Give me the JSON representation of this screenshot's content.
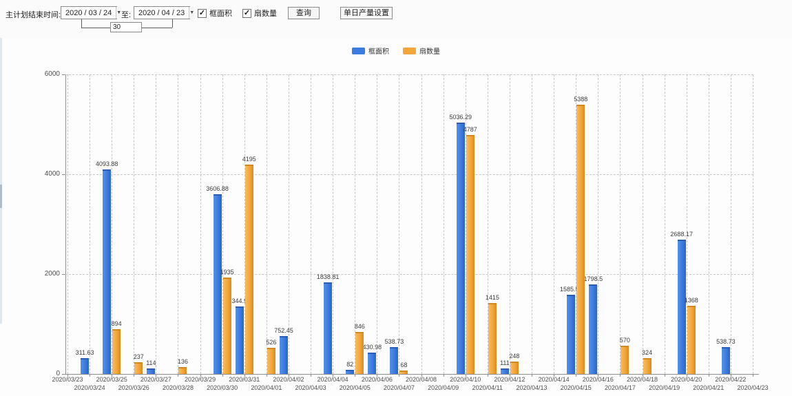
{
  "toolbar": {
    "label_start": "主计划结束时间:",
    "date_from": "2020 / 03 / 24",
    "to_label": "至:",
    "date_to": "2020 / 04 / 23",
    "days_value": "30",
    "checkbox_frame_area": "框面积",
    "checkbox_fan_count": "扇数量",
    "query_button": "查询",
    "daily_output_button": "单日产量设置"
  },
  "legend": {
    "items": [
      {
        "label": "框面积",
        "color": "#3b7ce0"
      },
      {
        "label": "扇数量",
        "color": "#f3a639"
      }
    ],
    "position": "top-center"
  },
  "chart_data": {
    "type": "bar",
    "title": "",
    "xlabel": "",
    "ylabel": "",
    "ylim": [
      0,
      6000
    ],
    "yticks": [
      0,
      2000,
      4000,
      6000
    ],
    "grid": true,
    "legend_position": "top",
    "categories": [
      "2020/03/23",
      "2020/03/24",
      "2020/03/25",
      "2020/03/26",
      "2020/03/27",
      "2020/03/28",
      "2020/03/29",
      "2020/03/30",
      "2020/03/31",
      "2020/04/01",
      "2020/04/02",
      "2020/04/03",
      "2020/04/04",
      "2020/04/05",
      "2020/04/06",
      "2020/04/07",
      "2020/04/08",
      "2020/04/09",
      "2020/04/10",
      "2020/04/11",
      "2020/04/12",
      "2020/04/13",
      "2020/04/14",
      "2020/04/15",
      "2020/04/16",
      "2020/04/17",
      "2020/04/18",
      "2020/04/19",
      "2020/04/20",
      "2020/04/21",
      "2020/04/22",
      "2020/04/23"
    ],
    "series": [
      {
        "name": "框面积",
        "color": "#3b7ce0",
        "values": [
          null,
          311.63,
          4093.88,
          null,
          114,
          null,
          null,
          3606.88,
          1344.95,
          null,
          752.45,
          null,
          1838.81,
          82,
          430.98,
          538.73,
          null,
          null,
          5036.29,
          null,
          111,
          null,
          null,
          1585.96,
          1798.5,
          null,
          null,
          null,
          2688.17,
          null,
          538.73,
          null
        ]
      },
      {
        "name": "扇数量",
        "color": "#f3a639",
        "values": [
          null,
          null,
          894,
          237,
          null,
          136,
          null,
          1935,
          4195,
          526,
          null,
          null,
          null,
          846,
          null,
          68,
          null,
          null,
          4787,
          1415,
          248,
          null,
          null,
          5388,
          null,
          570,
          324,
          null,
          1368,
          null,
          null,
          null
        ]
      }
    ]
  },
  "colors": {
    "series_blue": "#3b7ce0",
    "series_orange": "#f3a639",
    "gridline": "#c6c6c6",
    "axis": "#8f8f8f"
  }
}
